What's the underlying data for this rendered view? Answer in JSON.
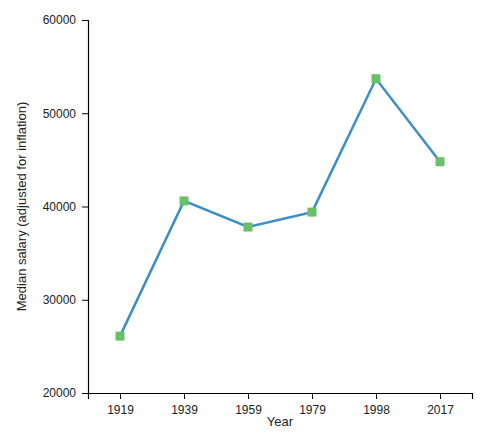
{
  "chart_data": {
    "type": "line",
    "x_label": "Year",
    "y_label": "Median salary (adjusted for inflation)",
    "categories": [
      "1919",
      "1939",
      "1959",
      "1979",
      "1998",
      "2017"
    ],
    "values": [
      26100,
      40600,
      37800,
      39400,
      53700,
      44800
    ],
    "color": "#3b8fc9",
    "marker": "square",
    "ylim": [
      20000,
      60000
    ],
    "yticks": [
      20000,
      30000,
      40000,
      50000,
      60000
    ]
  }
}
